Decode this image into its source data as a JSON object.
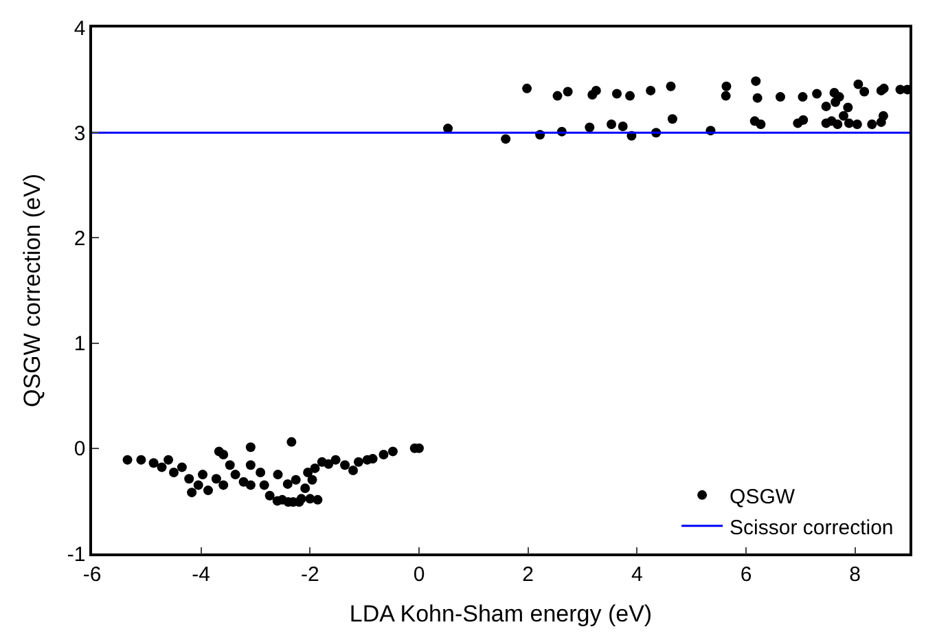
{
  "chart_data": {
    "type": "scatter",
    "xlabel": "LDA Kohn-Sham energy (eV)",
    "ylabel": "QSGW correction (eV)",
    "xlim": [
      -6,
      9
    ],
    "ylim": [
      -1,
      4
    ],
    "xticks": [
      -6,
      -4,
      -2,
      0,
      2,
      4,
      6,
      8
    ],
    "yticks": [
      -1,
      0,
      1,
      2,
      3,
      4
    ],
    "legend": "bottom right",
    "series": [
      {
        "name": "QSGW",
        "marker": "circle",
        "color": "#000000",
        "x": [
          -5.35,
          -5.1,
          -4.87,
          -4.72,
          -4.6,
          -4.5,
          -4.35,
          -4.22,
          -4.17,
          -4.05,
          -3.97,
          -3.87,
          -3.72,
          -3.59,
          -3.59,
          -3.67,
          -3.47,
          -3.37,
          -3.22,
          -3.09,
          -3.09,
          -3.09,
          -2.91,
          -2.84,
          -2.74,
          -2.59,
          -2.51,
          -2.41,
          -2.34,
          -2.31,
          -2.26,
          -2.16,
          -2.09,
          -2.04,
          -1.96,
          -1.91,
          -1.86,
          -1.78,
          -1.66,
          -1.53,
          -1.36,
          -1.21,
          -1.11,
          -0.95,
          -0.85,
          -0.65,
          -0.48,
          -0.08,
          0,
          -2.4,
          -2.2,
          -2.0,
          -2.6,
          0.53,
          1.59,
          1.98,
          2.22,
          2.54,
          2.62,
          2.73,
          3.13,
          3.18,
          3.25,
          3.53,
          3.63,
          3.74,
          3.87,
          3.9,
          4.25,
          4.35,
          4.62,
          4.65,
          5.35,
          5.64,
          5.63,
          6.18,
          6.21,
          6.16,
          6.27,
          6.63,
          6.95,
          7.05,
          7.04,
          7.3,
          7.47,
          7.62,
          7.71,
          7.64,
          7.87,
          7.47,
          7.57,
          7.68,
          7.79,
          7.89,
          8.04,
          8.06,
          8.17,
          8.31,
          8.48,
          8.53,
          8.48,
          8.52,
          8.83,
          8.96
        ],
        "values": [
          -0.11,
          -0.11,
          -0.14,
          -0.18,
          -0.11,
          -0.23,
          -0.18,
          -0.29,
          -0.42,
          -0.35,
          -0.25,
          -0.4,
          -0.29,
          -0.35,
          -0.06,
          -0.03,
          -0.16,
          -0.25,
          -0.32,
          0.01,
          -0.16,
          -0.35,
          -0.23,
          -0.35,
          -0.45,
          -0.25,
          -0.49,
          -0.34,
          0.06,
          -0.51,
          -0.3,
          -0.48,
          -0.38,
          -0.23,
          -0.3,
          -0.19,
          -0.49,
          -0.13,
          -0.15,
          -0.11,
          -0.16,
          -0.21,
          -0.13,
          -0.11,
          -0.1,
          -0.06,
          -0.03,
          0.0,
          0.0,
          -0.51,
          -0.51,
          -0.48,
          -0.5,
          3.04,
          2.94,
          3.42,
          2.98,
          3.35,
          3.01,
          3.39,
          3.05,
          3.36,
          3.4,
          3.08,
          3.37,
          3.06,
          3.35,
          2.97,
          3.4,
          3.0,
          3.44,
          3.13,
          3.02,
          3.44,
          3.35,
          3.49,
          3.33,
          3.11,
          3.08,
          3.34,
          3.09,
          3.12,
          3.34,
          3.37,
          3.25,
          3.38,
          3.34,
          3.29,
          3.24,
          3.09,
          3.11,
          3.08,
          3.16,
          3.09,
          3.08,
          3.46,
          3.39,
          3.08,
          3.4,
          3.42,
          3.1,
          3.16,
          3.41,
          3.41
        ]
      },
      {
        "name": "Scissor correction",
        "type": "line",
        "marker": "none",
        "color": "#0000ff",
        "x": [
          -6,
          9
        ],
        "values": [
          3,
          3
        ]
      }
    ]
  }
}
